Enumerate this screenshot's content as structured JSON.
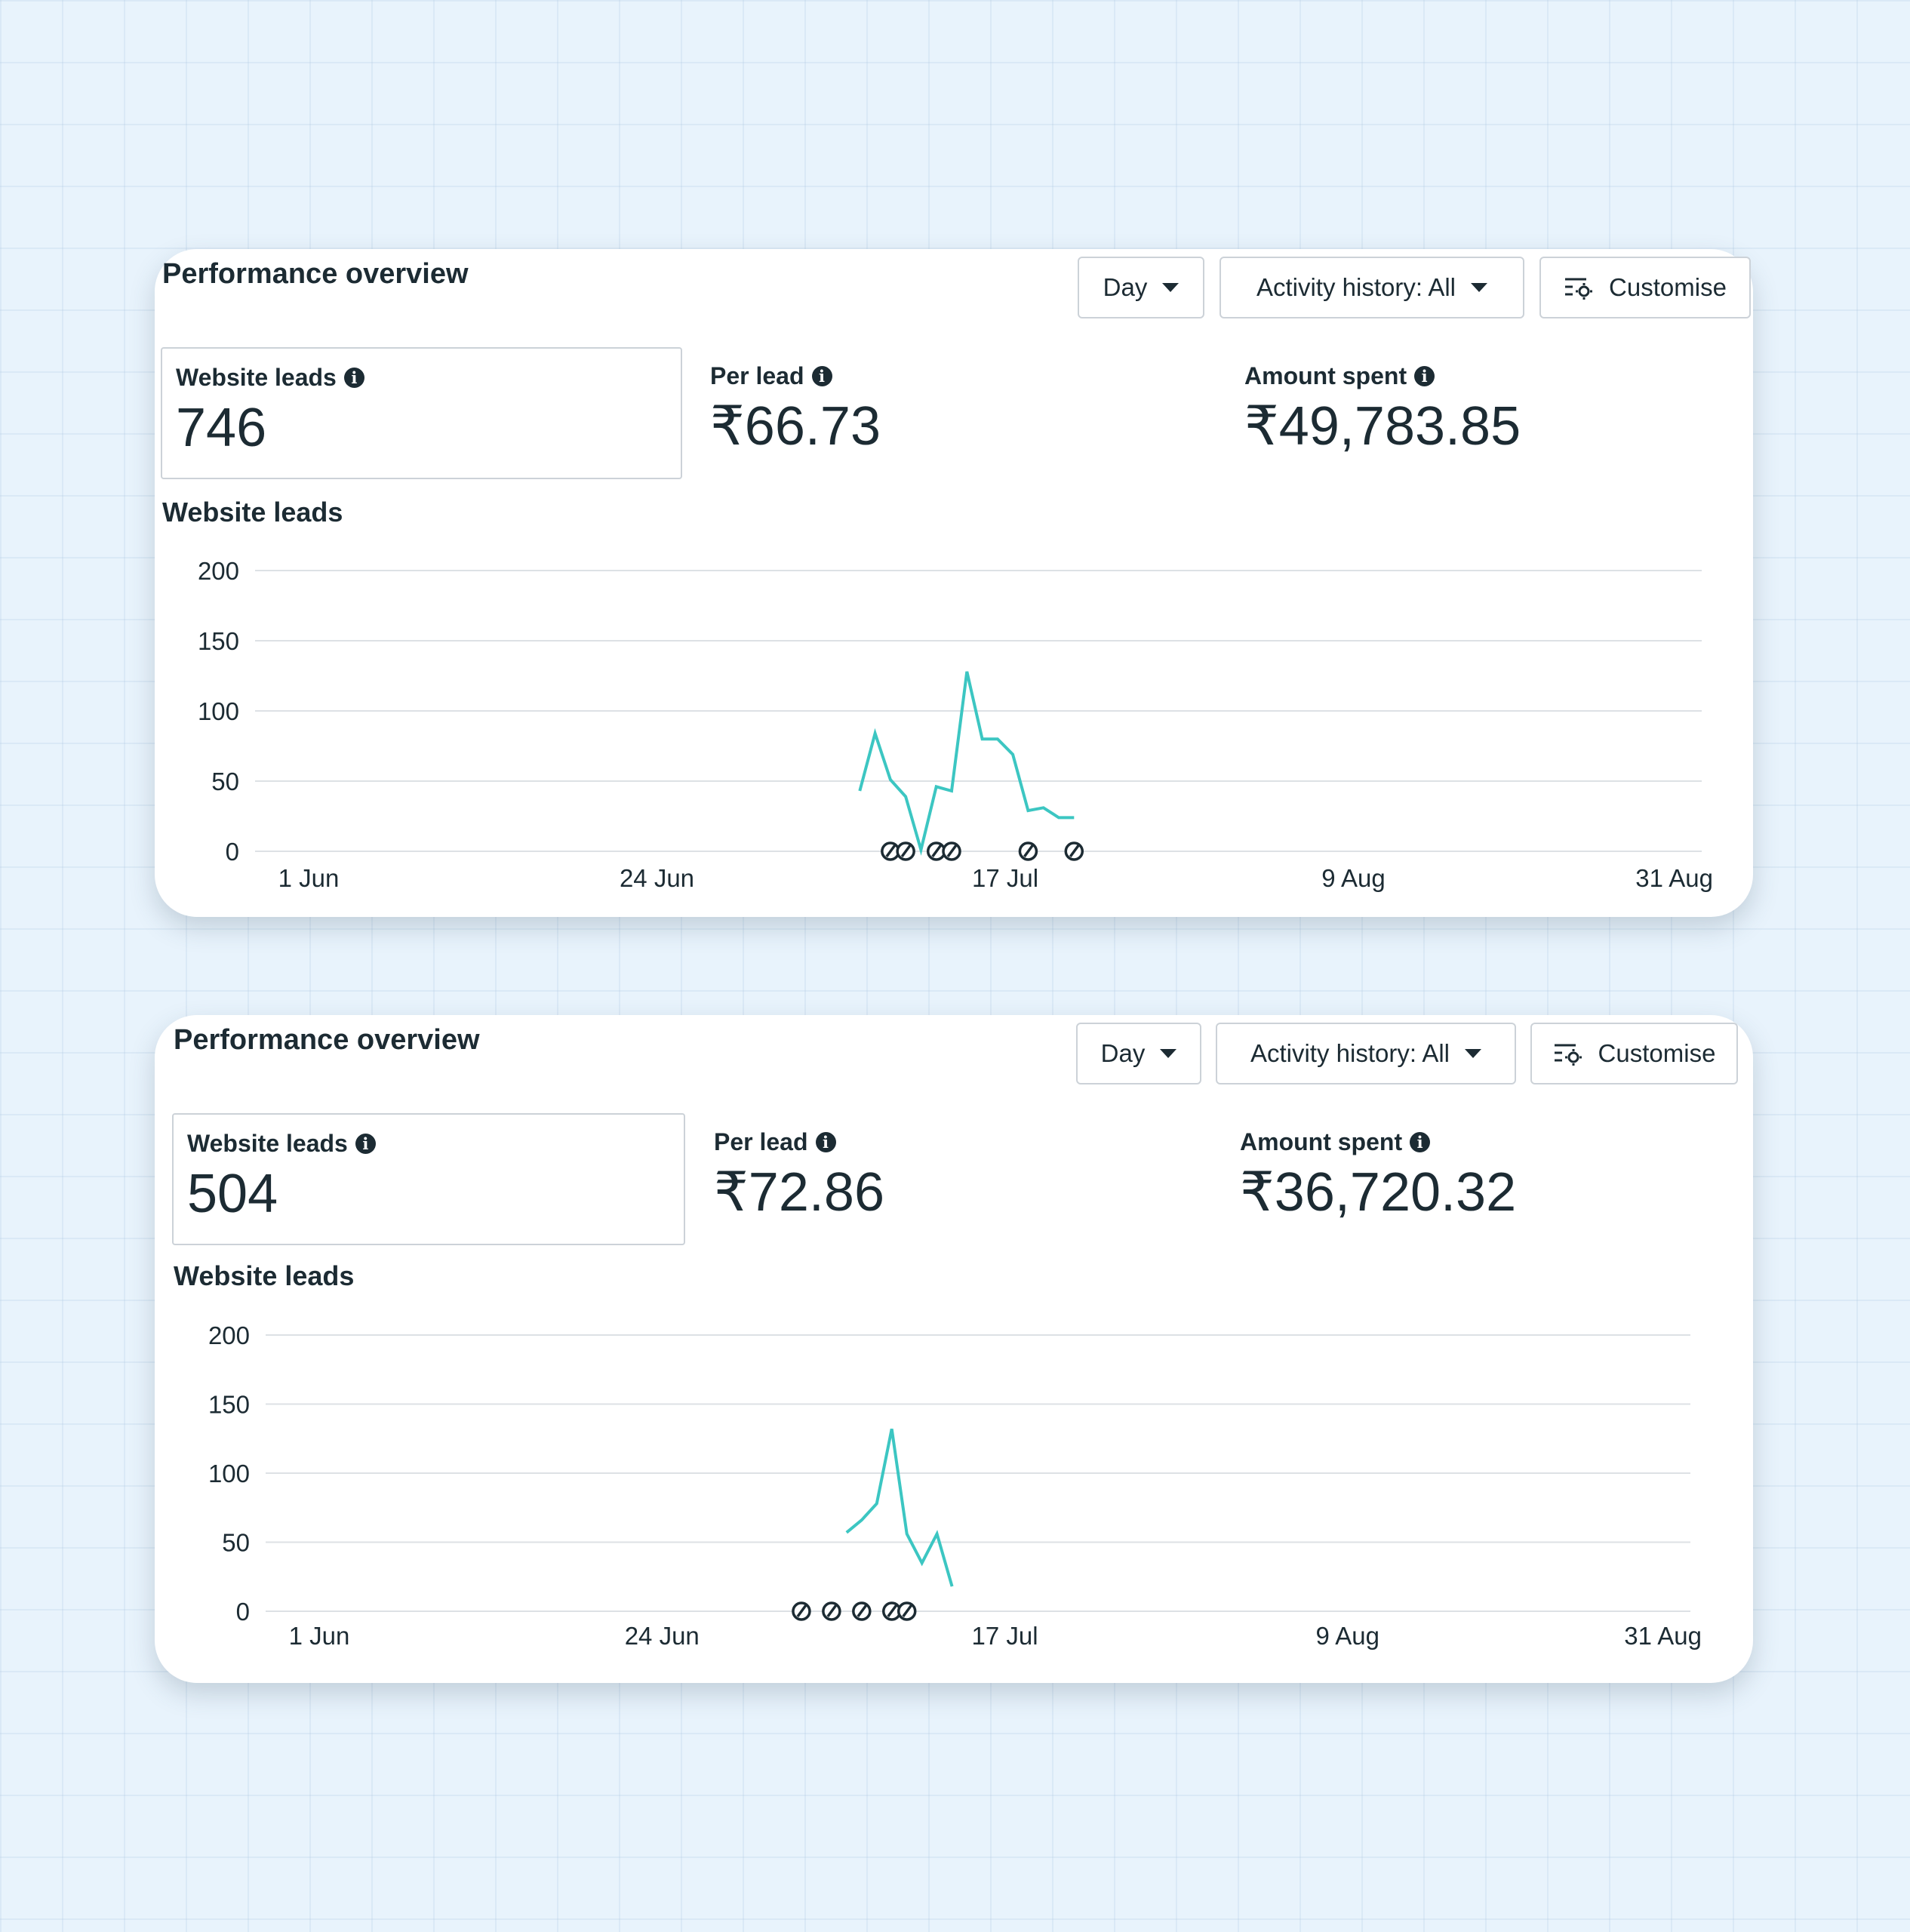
{
  "panels": [
    {
      "title": "Performance overview",
      "controls": {
        "day_label": "Day",
        "activity_label": "Activity history: All",
        "customise_label": "Customise"
      },
      "metrics": [
        {
          "label": "Website leads",
          "value": "746"
        },
        {
          "label": "Per lead",
          "value": "₹66.73"
        },
        {
          "label": "Amount spent",
          "value": "₹49,783.85"
        }
      ],
      "chart_title": "Website leads"
    },
    {
      "title": "Performance overview",
      "controls": {
        "day_label": "Day",
        "activity_label": "Activity history: All",
        "customise_label": "Customise"
      },
      "metrics": [
        {
          "label": "Website leads",
          "value": "504"
        },
        {
          "label": "Per lead",
          "value": "₹72.86"
        },
        {
          "label": "Amount spent",
          "value": "₹36,720.32"
        }
      ],
      "chart_title": "Website leads"
    }
  ],
  "chart_data": [
    {
      "type": "line",
      "title": "Website leads",
      "y_ticks": [
        200,
        150,
        100,
        50,
        0
      ],
      "ylim": [
        0,
        200
      ],
      "x_ticks": [
        "1 Jun",
        "24 Jun",
        "17 Jul",
        "9 Aug",
        "31 Aug"
      ],
      "xlim": [
        "2023-06-01",
        "2023-08-31"
      ],
      "grid": true,
      "line_color": "#3cc6c2",
      "series": [
        {
          "x": [
            "2023-07-07",
            "2023-07-08",
            "2023-07-09",
            "2023-07-10",
            "2023-07-11",
            "2023-07-12",
            "2023-07-13",
            "2023-07-14",
            "2023-07-15",
            "2023-07-16",
            "2023-07-17",
            "2023-07-18",
            "2023-07-19",
            "2023-07-20",
            "2023-07-21"
          ],
          "y": [
            43,
            84,
            51,
            39,
            1,
            46,
            43,
            128,
            80,
            80,
            69,
            29,
            31,
            24,
            24
          ]
        }
      ],
      "markers_x": [
        "2023-07-09",
        "2023-07-10",
        "2023-07-12",
        "2023-07-13",
        "2023-07-18",
        "2023-07-21"
      ]
    },
    {
      "type": "line",
      "title": "Website leads",
      "y_ticks": [
        200,
        150,
        100,
        50,
        0
      ],
      "ylim": [
        0,
        200
      ],
      "x_ticks": [
        "1 Jun",
        "24 Jun",
        "17 Jul",
        "9 Aug",
        "31 Aug"
      ],
      "xlim": [
        "2023-06-01",
        "2023-08-31"
      ],
      "grid": true,
      "line_color": "#3cc6c2",
      "series": [
        {
          "x": [
            "2023-07-06",
            "2023-07-07",
            "2023-07-08",
            "2023-07-09",
            "2023-07-10",
            "2023-07-11",
            "2023-07-12",
            "2023-07-13"
          ],
          "y": [
            57,
            66,
            78,
            132,
            56,
            35,
            56,
            18
          ]
        }
      ],
      "markers_x": [
        "2023-07-03",
        "2023-07-05",
        "2023-07-07",
        "2023-07-09",
        "2023-07-10"
      ]
    }
  ]
}
